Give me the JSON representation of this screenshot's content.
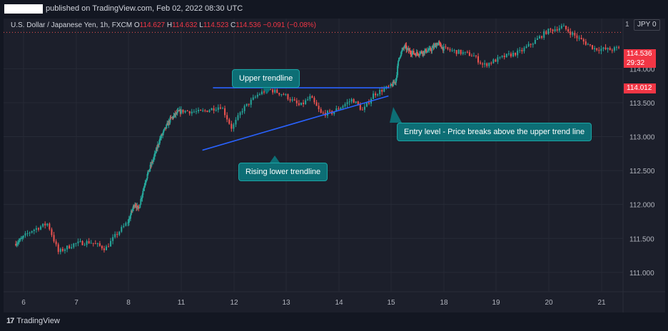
{
  "header": {
    "name_redacted": "",
    "published_text": "published on TradingView.com, Feb 02, 2022 08:30 UTC"
  },
  "legend": {
    "symbol": "U.S. Dollar / Japanese Yen, 1h, FXCM",
    "open_label": "O",
    "open": "114.627",
    "high_label": "H",
    "high": "114.632",
    "low_label": "L",
    "low": "114.523",
    "close_label": "C",
    "close": "114.536",
    "change": "−0.091 (−0.08%)"
  },
  "toolbar": {
    "currency": "JPY",
    "currency_suffix": "0",
    "truncated_text": "1"
  },
  "price_tags": {
    "last_price": "114.536",
    "countdown": "29:32",
    "low_marker": "114.012"
  },
  "annotations": {
    "upper": "Upper trendline",
    "lower": "Rising lower trendline",
    "entry": "Entry level - Price breaks above the upper trend line"
  },
  "footer": {
    "logo_mark": "17",
    "logo_text": "TradingView"
  },
  "colors": {
    "background": "#131722",
    "panel": "#1c1f2b",
    "up": "#26a69a",
    "down": "#ef5350",
    "trendline": "#2962ff",
    "callout": "#0d6e75",
    "price_tag": "#f23645"
  },
  "chart_data": {
    "type": "candlestick",
    "title": "U.S. Dollar / Japanese Yen, 1h, FXCM",
    "x_ticks": [
      "6",
      "7",
      "8",
      "11",
      "12",
      "13",
      "14",
      "15",
      "18",
      "19",
      "20",
      "21"
    ],
    "y_ticks": [
      "114.000",
      "113.500",
      "113.000",
      "112.500",
      "112.000",
      "111.500",
      "111.000"
    ],
    "ylim": [
      110.83,
      114.74
    ],
    "grid": true,
    "last_price": 114.536,
    "path_days": [
      5.7,
      6.0,
      6.2,
      6.5,
      6.7,
      7.0,
      7.3,
      7.6,
      7.8,
      8.0,
      8.2,
      8.4,
      8.6,
      9.0,
      9.2,
      9.5,
      9.8,
      10.4,
      10.8,
      11.1,
      11.4,
      11.8,
      12.0,
      12.2,
      12.5,
      12.7,
      13.0,
      13.3,
      13.5,
      13.7,
      13.9,
      14.1,
      14.3,
      14.5,
      14.7,
      14.9,
      15.3,
      15.5,
      15.8,
      16.0,
      16.4,
      17.3,
      17.7,
      18.0,
      18.3,
      18.6,
      18.8,
      19.2,
      19.5,
      19.8,
      20.0,
      20.3,
      20.6,
      20.9,
      21.2,
      21.5,
      21.7
    ],
    "path_prices": [
      111.42,
      111.5,
      111.62,
      111.72,
      111.3,
      111.42,
      111.45,
      111.35,
      111.55,
      111.72,
      111.88,
      112.02,
      111.92,
      112.35,
      112.5,
      112.7,
      112.95,
      113.25,
      113.35,
      113.38,
      113.36,
      113.45,
      113.12,
      113.4,
      113.62,
      113.7,
      113.62,
      113.45,
      113.58,
      113.34,
      113.35,
      113.45,
      113.55,
      113.38,
      113.62,
      113.7,
      113.82,
      114.18,
      114.33,
      114.27,
      114.22,
      114.28,
      114.38,
      114.3,
      114.25,
      114.2,
      114.05,
      114.18,
      114.25,
      114.42,
      114.55,
      114.62,
      114.45,
      114.3,
      114.28,
      114.32,
      114.02
    ],
    "trendlines": [
      {
        "name": "Upper trendline",
        "x": [
          11.6,
          14.97
        ],
        "y": [
          113.72,
          113.72
        ]
      },
      {
        "name": "Rising lower trendline",
        "x": [
          11.4,
          14.95
        ],
        "y": [
          112.8,
          113.6
        ]
      }
    ],
    "price_line": 114.536
  }
}
